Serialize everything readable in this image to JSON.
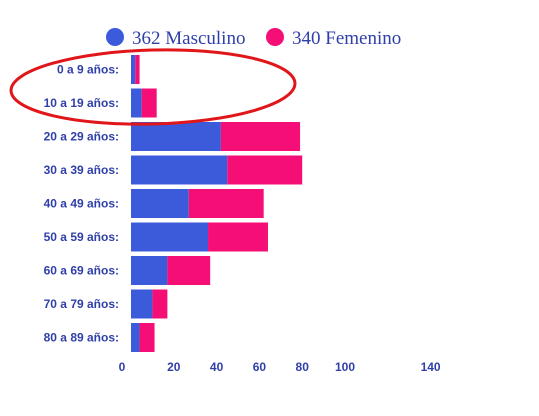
{
  "chart_data": {
    "type": "bar",
    "orientation": "horizontal",
    "stacked": true,
    "categories": [
      "0 a 9 años:",
      "10 a 19 años:",
      "20 a 29 años:",
      "30 a 39 años:",
      "40 a 49 años:",
      "50 a 59 años:",
      "60 a 69 años:",
      "70 a 79 años:",
      "80 a 89 años:"
    ],
    "series": [
      {
        "name": "362 Masculino",
        "color": "#3b5bdb",
        "values": [
          2,
          5,
          42,
          45,
          27,
          36,
          17,
          10,
          4
        ]
      },
      {
        "name": "340 Femenino",
        "color": "#f50e76",
        "values": [
          2,
          7,
          37,
          35,
          35,
          28,
          20,
          7,
          7
        ]
      }
    ],
    "x_ticks": [
      0,
      20,
      40,
      60,
      80,
      100,
      140
    ],
    "xlim": [
      0,
      160
    ],
    "legend_position": "top",
    "annotation": {
      "type": "ellipse",
      "color": "#e0161b",
      "highlights": [
        "0 a 9 años:",
        "10 a 19 años:"
      ]
    },
    "title": "",
    "xlabel": "",
    "ylabel": ""
  }
}
